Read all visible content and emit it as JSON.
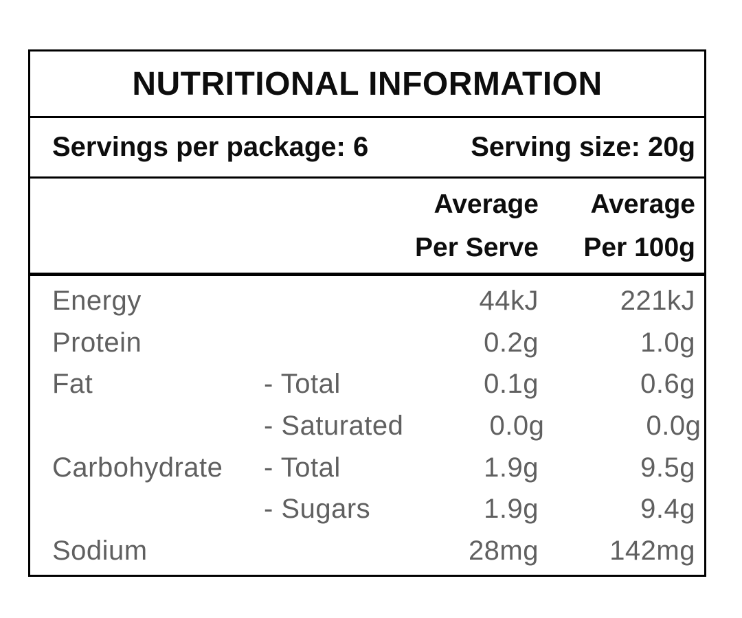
{
  "colors": {
    "background": "#ffffff",
    "border": "#000000",
    "heading_text": "#0d0d0d",
    "body_text": "#606060"
  },
  "panel": {
    "title": "NUTRITIONAL INFORMATION",
    "serving_info": {
      "servings_per_package": "Servings per package: 6",
      "serving_size": "Serving size: 20g"
    },
    "column_headers": {
      "per_serve": {
        "line1": "Average",
        "line2": "Per Serve"
      },
      "per_100g": {
        "line1": "Average",
        "line2": "Per 100g"
      }
    },
    "rows": [
      {
        "nutrient": "Energy",
        "sub": "",
        "per_serve": "44kJ",
        "per_100g": "221kJ"
      },
      {
        "nutrient": "Protein",
        "sub": "",
        "per_serve": "0.2g",
        "per_100g": "1.0g"
      },
      {
        "nutrient": "Fat",
        "sub": "- Total",
        "per_serve": "0.1g",
        "per_100g": "0.6g"
      },
      {
        "nutrient": "",
        "sub": "- Saturated",
        "per_serve": "0.0g",
        "per_100g": "0.0g"
      },
      {
        "nutrient": "Carbohydrate",
        "sub": "- Total",
        "per_serve": "1.9g",
        "per_100g": "9.5g"
      },
      {
        "nutrient": "",
        "sub": "- Sugars",
        "per_serve": "1.9g",
        "per_100g": "9.4g"
      },
      {
        "nutrient": "Sodium",
        "sub": "",
        "per_serve": "28mg",
        "per_100g": "142mg"
      }
    ]
  }
}
